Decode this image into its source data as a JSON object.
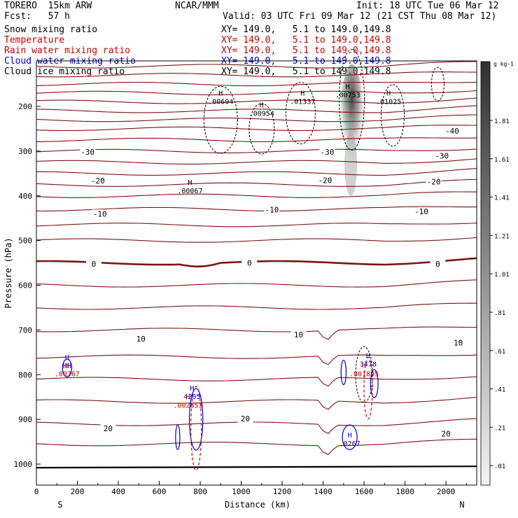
{
  "header": {
    "model_line": "TORERO  15km ARW",
    "center": "NCAR/MMM",
    "init": "Init: 18 UTC Tue 06 Mar 12",
    "fcst": "Fcst:   57 h",
    "valid": "Valid: 03 UTC Fri 09 Mar 12 (21 CST Thu 08 Mar 12)"
  },
  "fields": [
    {
      "label": "Snow mixing ratio",
      "xy": "XY= 149.0,   5.1 to 149.0,149.8",
      "color": "#000000"
    },
    {
      "label": "Temperature",
      "xy": "XY= 149.0,   5.1 to 149.0,149.8",
      "color": "#cc0000"
    },
    {
      "label": "Rain water mixing ratio",
      "xy": "XY= 149.0,   5.1 to 149.0,149.8",
      "color": "#cc0000"
    },
    {
      "label": "Cloud water mixing ratio",
      "xy": "XY= 149.0,   5.1 to 149.0,149.8",
      "color": "#0000cc"
    },
    {
      "label": "Cloud ice mixing ratio",
      "xy": "XY= 149.0,   5.1 to 149.0,149.8",
      "color": "#000000"
    }
  ],
  "chart_data": {
    "type": "contour cross-section",
    "xlabel": "Distance (km)",
    "ylabel": "Pressure (hPa)",
    "x_ticks": [
      "0",
      "200",
      "400",
      "600",
      "800",
      "1000",
      "1200",
      "1400",
      "1600",
      "1800",
      "2000"
    ],
    "y_ticks": [
      "200",
      "300",
      "400",
      "500",
      "600",
      "700",
      "800",
      "900",
      "1000"
    ],
    "xlim": [
      0,
      2150
    ],
    "ylim": [
      1050,
      100
    ],
    "left_end": "S",
    "right_end": "N",
    "colorbar_unit": "g kg-1",
    "colorbar_labels": [
      "1.81",
      "1.61",
      "1.41",
      "1.21",
      "1.01",
      ".81",
      ".61",
      ".41",
      ".21",
      ".01"
    ],
    "temperature_labels": [
      {
        "text": "-40",
        "x": 2030,
        "p": 255
      },
      {
        "text": "-30",
        "x": 250,
        "p": 302
      },
      {
        "text": "-30",
        "x": 1420,
        "p": 302
      },
      {
        "text": "-30",
        "x": 1980,
        "p": 310
      },
      {
        "text": "-20",
        "x": 300,
        "p": 366
      },
      {
        "text": "-20",
        "x": 1410,
        "p": 365
      },
      {
        "text": "-20",
        "x": 1940,
        "p": 368
      },
      {
        "text": "-10",
        "x": 310,
        "p": 440
      },
      {
        "text": "-10",
        "x": 1150,
        "p": 431
      },
      {
        "text": "-10",
        "x": 1880,
        "p": 435
      },
      {
        "text": "0",
        "x": 280,
        "p": 552
      },
      {
        "text": "0",
        "x": 1040,
        "p": 550
      },
      {
        "text": "0",
        "x": 1960,
        "p": 552
      },
      {
        "text": "10",
        "x": 510,
        "p": 720
      },
      {
        "text": "10",
        "x": 1280,
        "p": 710
      },
      {
        "text": "10",
        "x": 2060,
        "p": 728
      },
      {
        "text": "20",
        "x": 350,
        "p": 920
      },
      {
        "text": "20",
        "x": 1020,
        "p": 898
      },
      {
        "text": "20",
        "x": 2000,
        "p": 932
      }
    ],
    "ice_maxima": [
      {
        "text": ".00694",
        "x": 900,
        "p": 188
      },
      {
        "text": ".00954",
        "x": 1100,
        "p": 215
      },
      {
        "text": ".01337",
        "x": 1300,
        "p": 188
      },
      {
        "text": ".00753",
        "x": 1520,
        "p": 173
      },
      {
        "text": ".01025",
        "x": 1720,
        "p": 188
      },
      {
        "text": ".00067",
        "x": 750,
        "p": 388
      }
    ],
    "cloud_water_maxima": [
      {
        "text": "4205",
        "x": 760,
        "p": 848
      },
      {
        "text": "3478",
        "x": 1620,
        "p": 775
      },
      {
        "text": ".0267",
        "x": 1530,
        "p": 953
      },
      {
        "text": "HH",
        "x": 150,
        "p": 779
      }
    ],
    "rain_maxima": [
      {
        "text": ".00767",
        "x": 150,
        "p": 797
      },
      {
        "text": ".002853",
        "x": 740,
        "p": 868
      },
      {
        "text": ".001895",
        "x": 1600,
        "p": 797
      }
    ]
  }
}
